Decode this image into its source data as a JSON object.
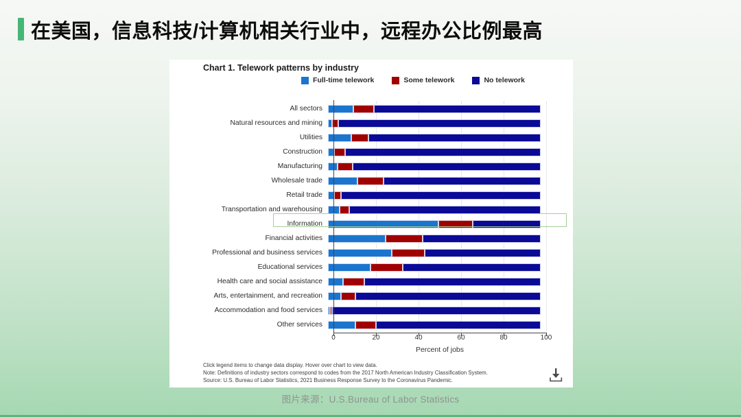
{
  "slide": {
    "title": "在美国，信息科技/计算机相关行业中，远程办公比例最高",
    "caption_label": "图片来源：",
    "caption_source": "U.S.Bureau of Labor Statistics",
    "colors": {
      "accent_green": "#45b677",
      "bottom_strip_green": "#57b97a",
      "highlight_box_border": "#a5cf97",
      "background_top": "#f6f8f6",
      "background_bottom": "#a5d8b2"
    }
  },
  "chart_data": {
    "type": "bar",
    "orientation": "horizontal",
    "stacked": true,
    "title": "Chart 1. Telework patterns by industry",
    "xlabel": "Percent of jobs",
    "xlim": [
      0,
      100
    ],
    "xticks": [
      0,
      20,
      40,
      60,
      80,
      100
    ],
    "gridlines": [
      20,
      40,
      60,
      80,
      100
    ],
    "grid": "dotted-vertical",
    "legend_position": "top",
    "highlighted_category": "Information",
    "categories": [
      "All sectors",
      "Natural resources and mining",
      "Utilities",
      "Construction",
      "Manufacturing",
      "Wholesale trade",
      "Retail trade",
      "Transportation and warehousing",
      "Information",
      "Financial activities",
      "Professional and business services",
      "Educational services",
      "Health care and social assistance",
      "Arts, entertainment, and recreation",
      "Accommodation and food services",
      "Other services"
    ],
    "series": [
      {
        "name": "Full-time telework",
        "color": "#1b75ce",
        "values": [
          12,
          2,
          11,
          3,
          4.5,
          14,
          3,
          5.5,
          52,
          27,
          30,
          20,
          7,
          6,
          1,
          13
        ]
      },
      {
        "name": "Some telework",
        "color": "#a00000",
        "values": [
          9.5,
          3,
          8,
          5,
          7,
          12,
          3,
          4.5,
          16,
          17.5,
          15.5,
          15,
          10,
          7,
          1,
          9.5
        ]
      },
      {
        "name": "No telework",
        "color": "#0a0a96",
        "values": [
          78.5,
          95,
          81,
          92,
          88.5,
          74,
          94,
          90,
          32,
          55.5,
          54.5,
          65,
          83,
          87,
          98,
          77.5
        ]
      }
    ],
    "footnotes": [
      "Click legend items to change data display. Hover over chart to view data.",
      "Note: Definitions of industry sectors correspond to codes from the 2017 North American Industry Classification System.",
      "Source: U.S. Bureau of Labor Statistics, 2021 Business Response Survey to the Coronavirus Pandemic."
    ]
  }
}
